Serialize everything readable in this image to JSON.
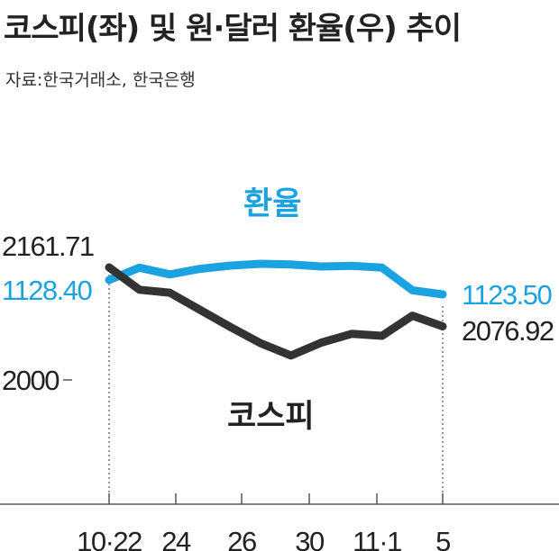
{
  "title": "코스피(좌) 및 원·달러 환율(우) 추이",
  "source": "자료:한국거래소, 한국은행",
  "colors": {
    "kospi": "#333333",
    "fx": "#1aa3e0",
    "text": "#222222"
  },
  "chart_data": {
    "type": "line",
    "title": "코스피(좌) 및 원·달러 환율(우) 추이",
    "x_tick_labels": [
      "10·22",
      "24",
      "26",
      "30",
      "11·1",
      "5"
    ],
    "y_left_tick_label": "2000",
    "series": [
      {
        "name": "환율",
        "axis": "right",
        "values": [
          1128.4,
          1132.6,
          1130.3,
          1132.2,
          1133.3,
          1133.9,
          1133.7,
          1133.0,
          1133.2,
          1132.6,
          1124.9,
          1123.5
        ],
        "start_label": "1128.40",
        "end_label": "1123.50"
      },
      {
        "name": "코스피",
        "axis": "left",
        "values": [
          2161.71,
          2129.6,
          2125.3,
          2100.7,
          2076.1,
          2052.6,
          2035.1,
          2053.7,
          2066.2,
          2063.4,
          2092.4,
          2076.92
        ],
        "start_label": "2161.71",
        "end_label": "2076.92"
      }
    ]
  }
}
